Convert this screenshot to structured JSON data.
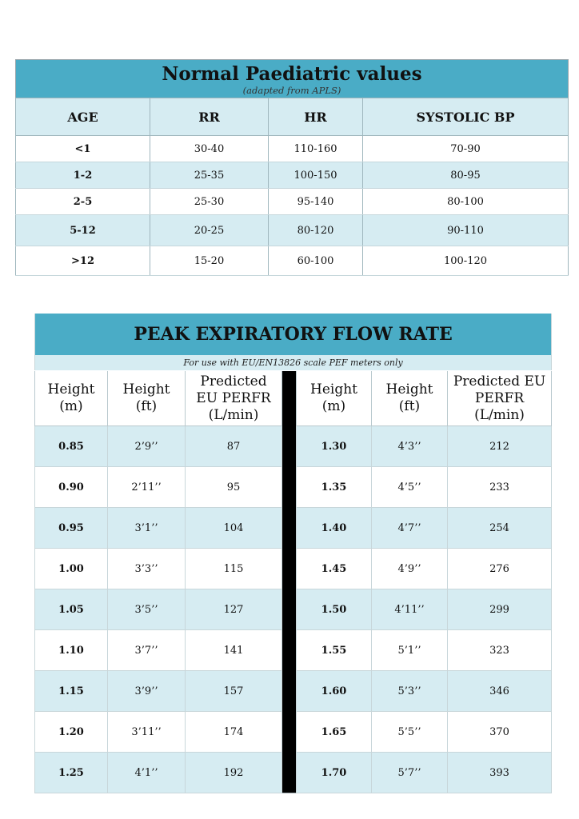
{
  "paediatric": {
    "title": "Normal Paediatric values",
    "subtitle": "(adapted from APLS)",
    "columns": [
      "AGE",
      "RR",
      "HR",
      "SYSTOLIC BP"
    ],
    "rows": [
      [
        "<1",
        "30-40",
        "110-160",
        "70-90"
      ],
      [
        "1-2",
        "25-35",
        "100-150",
        "80-95"
      ],
      [
        "2-5",
        "25-30",
        "95-140",
        "80-100"
      ],
      [
        "5-12",
        "20-25",
        "80-120",
        "90-110"
      ],
      [
        ">12",
        "15-20",
        "60-100",
        "100-120"
      ]
    ]
  },
  "pefr": {
    "title": "PEAK EXPIRATORY FLOW RATE",
    "note": "For use with EU/EN13826 scale PEF meters only",
    "left_headers": [
      "Height\n(m)",
      "Height\n(ft)",
      "Predicted\nEU PERFR\n(L/min)"
    ],
    "right_headers": [
      "Height\n(m)",
      "Height\n(ft)",
      "Predicted EU\nPERFR\n(L/min)"
    ],
    "rows": [
      [
        "0.85",
        "2’9’’",
        "87",
        "1.30",
        "4’3’’",
        "212"
      ],
      [
        "0.90",
        "2’11’’",
        "95",
        "1.35",
        "4’5’’",
        "233"
      ],
      [
        "0.95",
        "3’1’’",
        "104",
        "1.40",
        "4’7’’",
        "254"
      ],
      [
        "1.00",
        "3’3’’",
        "115",
        "1.45",
        "4’9’’",
        "276"
      ],
      [
        "1.05",
        "3’5’’",
        "127",
        "1.50",
        "4’11’’",
        "299"
      ],
      [
        "1.10",
        "3’7’’",
        "141",
        "1.55",
        "5’1’’",
        "323"
      ],
      [
        "1.15",
        "3’9’’",
        "157",
        "1.60",
        "5’3’’",
        "346"
      ],
      [
        "1.20",
        "3’11’’",
        "174",
        "1.65",
        "5’5’’",
        "370"
      ],
      [
        "1.25",
        "4’1’’",
        "192",
        "1.70",
        "5’7’’",
        "393"
      ]
    ]
  }
}
